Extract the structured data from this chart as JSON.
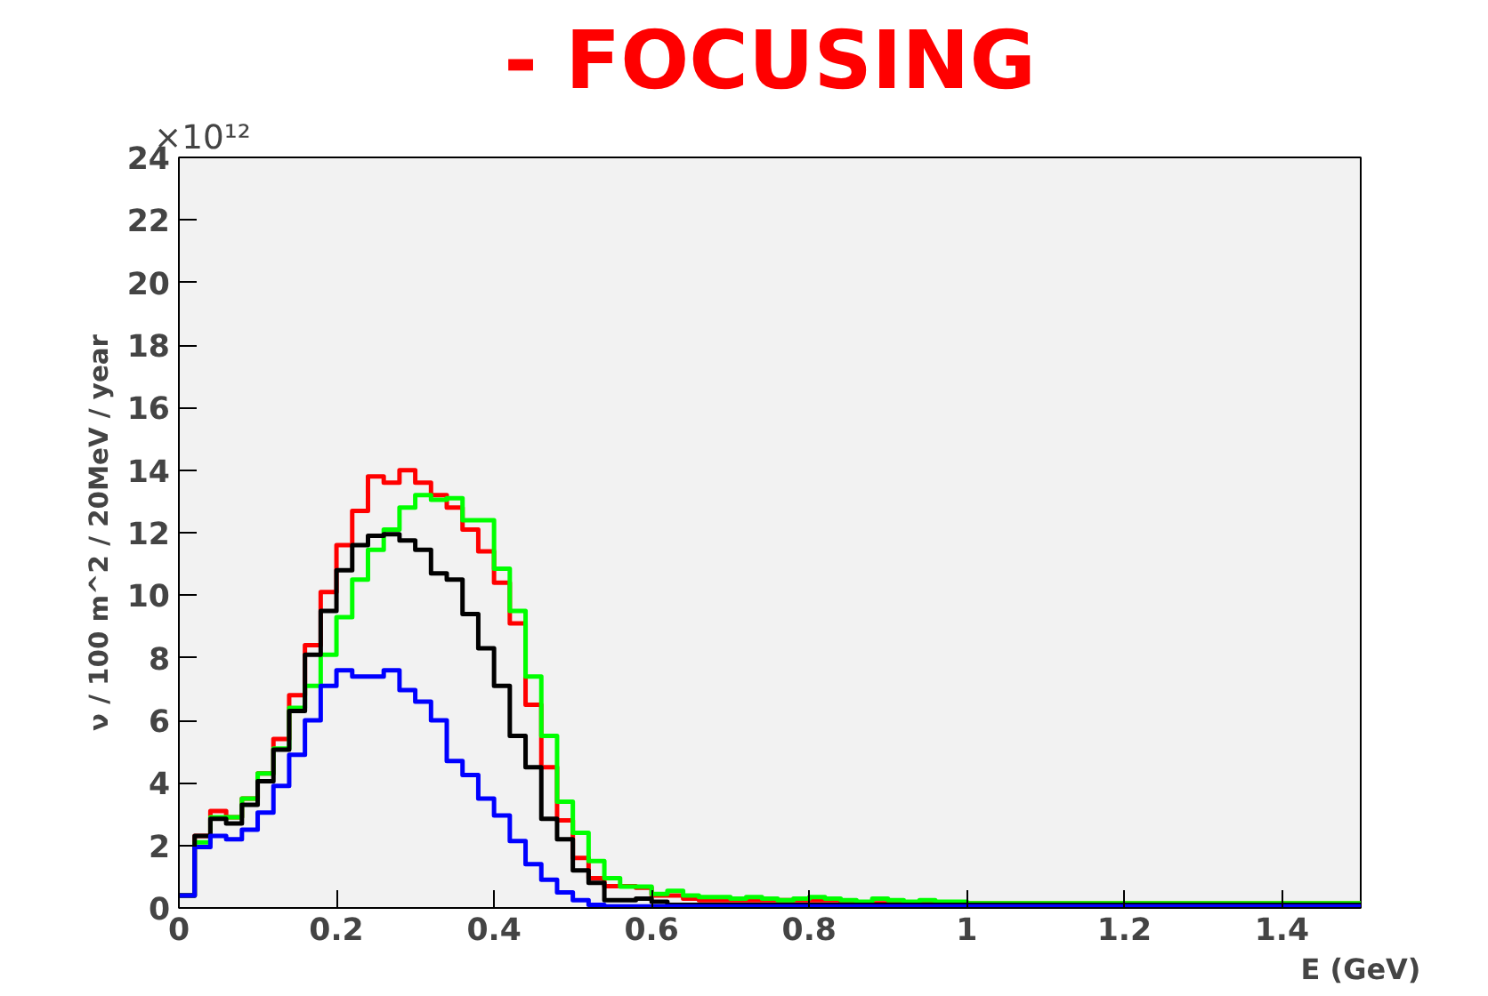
{
  "chart_data": {
    "type": "histogram",
    "title": "- FOCUSING",
    "xlabel": "E (GeV)",
    "ylabel": "ν / 100 m^2 / 20MeV / year",
    "annotations": [
      "×10¹²"
    ],
    "bins": [
      0,
      0.02,
      0.04,
      0.06,
      0.08,
      0.1,
      0.12,
      0.14,
      0.16,
      0.18,
      0.2,
      0.22,
      0.24,
      0.26,
      0.28,
      0.3,
      0.32,
      0.34,
      0.36,
      0.38,
      0.4,
      0.42,
      0.44,
      0.46,
      0.48,
      0.5,
      0.52,
      0.54,
      0.56,
      0.58,
      0.6,
      0.62,
      0.64,
      0.66,
      0.68,
      0.7,
      0.72,
      0.74,
      0.76,
      0.78,
      0.8,
      0.82,
      0.84,
      0.86,
      0.88,
      0.9,
      0.92,
      0.94,
      0.96,
      0.98,
      1,
      1.02,
      1.04,
      1.06,
      1.08,
      1.1,
      1.12,
      1.14,
      1.16,
      1.18,
      1.2,
      1.22,
      1.24,
      1.26,
      1.28,
      1.3,
      1.32,
      1.34,
      1.36,
      1.38,
      1.4,
      1.42,
      1.44,
      1.46,
      1.48,
      1.5
    ],
    "series": [
      {
        "color": "#ff0000",
        "values": [
          0.4,
          2.3,
          3.1,
          2.9,
          3.5,
          4.3,
          5.4,
          6.8,
          8.4,
          10.1,
          11.6,
          12.7,
          13.8,
          13.6,
          14.0,
          13.6,
          13.2,
          12.8,
          12.1,
          11.4,
          10.4,
          9.1,
          6.5,
          4.5,
          2.8,
          1.6,
          0.95,
          0.7,
          0.7,
          0.65,
          0.4,
          0.4,
          0.3,
          0.25,
          0.25,
          0.25,
          0.25,
          0.25,
          0.25,
          0.25,
          0.25,
          0.25,
          0.15,
          0.15,
          0.15,
          0.15,
          0.15,
          0.15,
          0.15,
          0.15,
          0.15,
          0.15,
          0.15,
          0.15,
          0.15,
          0.15,
          0.15,
          0.15,
          0.15,
          0.15,
          0.15,
          0.15,
          0.15,
          0.15,
          0.15,
          0.15,
          0.15,
          0.15,
          0.15,
          0.15,
          0.15,
          0.15,
          0.15,
          0.15,
          0.15
        ]
      },
      {
        "color": "#00ff00",
        "values": [
          0.4,
          2.1,
          2.9,
          2.9,
          3.5,
          4.3,
          5.1,
          6.4,
          7.1,
          8.1,
          9.3,
          10.5,
          11.45,
          12.1,
          12.8,
          13.2,
          13.05,
          13.1,
          12.4,
          12.4,
          10.85,
          9.5,
          7.4,
          5.5,
          3.4,
          2.4,
          1.5,
          0.95,
          0.68,
          0.68,
          0.45,
          0.55,
          0.4,
          0.35,
          0.35,
          0.3,
          0.35,
          0.3,
          0.25,
          0.3,
          0.35,
          0.3,
          0.25,
          0.2,
          0.3,
          0.25,
          0.2,
          0.25,
          0.2,
          0.2,
          0.15,
          0.15,
          0.15,
          0.15,
          0.15,
          0.15,
          0.15,
          0.15,
          0.15,
          0.15,
          0.15,
          0.15,
          0.15,
          0.15,
          0.15,
          0.15,
          0.15,
          0.15,
          0.15,
          0.15,
          0.15,
          0.15,
          0.15,
          0.15,
          0.15
        ]
      },
      {
        "color": "#000000",
        "values": [
          0.4,
          2.3,
          2.85,
          2.7,
          3.3,
          4.05,
          5.06,
          6.3,
          8.1,
          9.5,
          10.8,
          11.6,
          11.9,
          11.95,
          11.75,
          11.45,
          10.7,
          10.5,
          9.4,
          8.3,
          7.1,
          5.5,
          4.5,
          2.85,
          2.2,
          1.2,
          0.8,
          0.25,
          0.25,
          0.3,
          0.2,
          0.1,
          0.1,
          0.1,
          0.1,
          0.1,
          0.1,
          0.1,
          0.1,
          0.1,
          0.1,
          0.1,
          0.1,
          0.1,
          0.1,
          0.1,
          0.1,
          0.1,
          0.1,
          0.1,
          0.1,
          0.1,
          0.1,
          0.1,
          0.1,
          0.1,
          0.1,
          0.1,
          0.1,
          0.1,
          0.1,
          0.1,
          0.1,
          0.1,
          0.1,
          0.1,
          0.1,
          0.1,
          0.1,
          0.1,
          0.1,
          0.1,
          0.1,
          0.1,
          0.1
        ]
      },
      {
        "color": "#0000ff",
        "values": [
          0.4,
          1.95,
          2.3,
          2.2,
          2.5,
          3.05,
          3.9,
          4.9,
          6.0,
          7.1,
          7.6,
          7.4,
          7.4,
          7.6,
          6.97,
          6.6,
          6.0,
          4.7,
          4.25,
          3.5,
          2.96,
          2.14,
          1.4,
          0.9,
          0.5,
          0.25,
          0.1,
          0.05,
          0.05,
          0.05,
          0.05,
          0.05,
          0.05,
          0.05,
          0.05,
          0.05,
          0.05,
          0.05,
          0.05,
          0.05,
          0.05,
          0.05,
          0.05,
          0.05,
          0.05,
          0.05,
          0.05,
          0.05,
          0.05,
          0.05,
          0.05,
          0.05,
          0.05,
          0.05,
          0.05,
          0.05,
          0.05,
          0.05,
          0.05,
          0.05,
          0.05,
          0.05,
          0.05,
          0.05,
          0.05,
          0.05,
          0.05,
          0.05,
          0.05,
          0.05,
          0.05,
          0.05,
          0.05,
          0.05,
          0.05
        ]
      }
    ],
    "xlim": [
      0,
      1.5
    ],
    "ylim": [
      0,
      24
    ],
    "xticks": [
      0,
      0.2,
      0.4,
      0.6,
      0.8,
      1,
      1.2,
      1.4
    ],
    "yticks": [
      0,
      2,
      4,
      6,
      8,
      10,
      12,
      14,
      16,
      18,
      20,
      22,
      24
    ],
    "grid": false
  }
}
